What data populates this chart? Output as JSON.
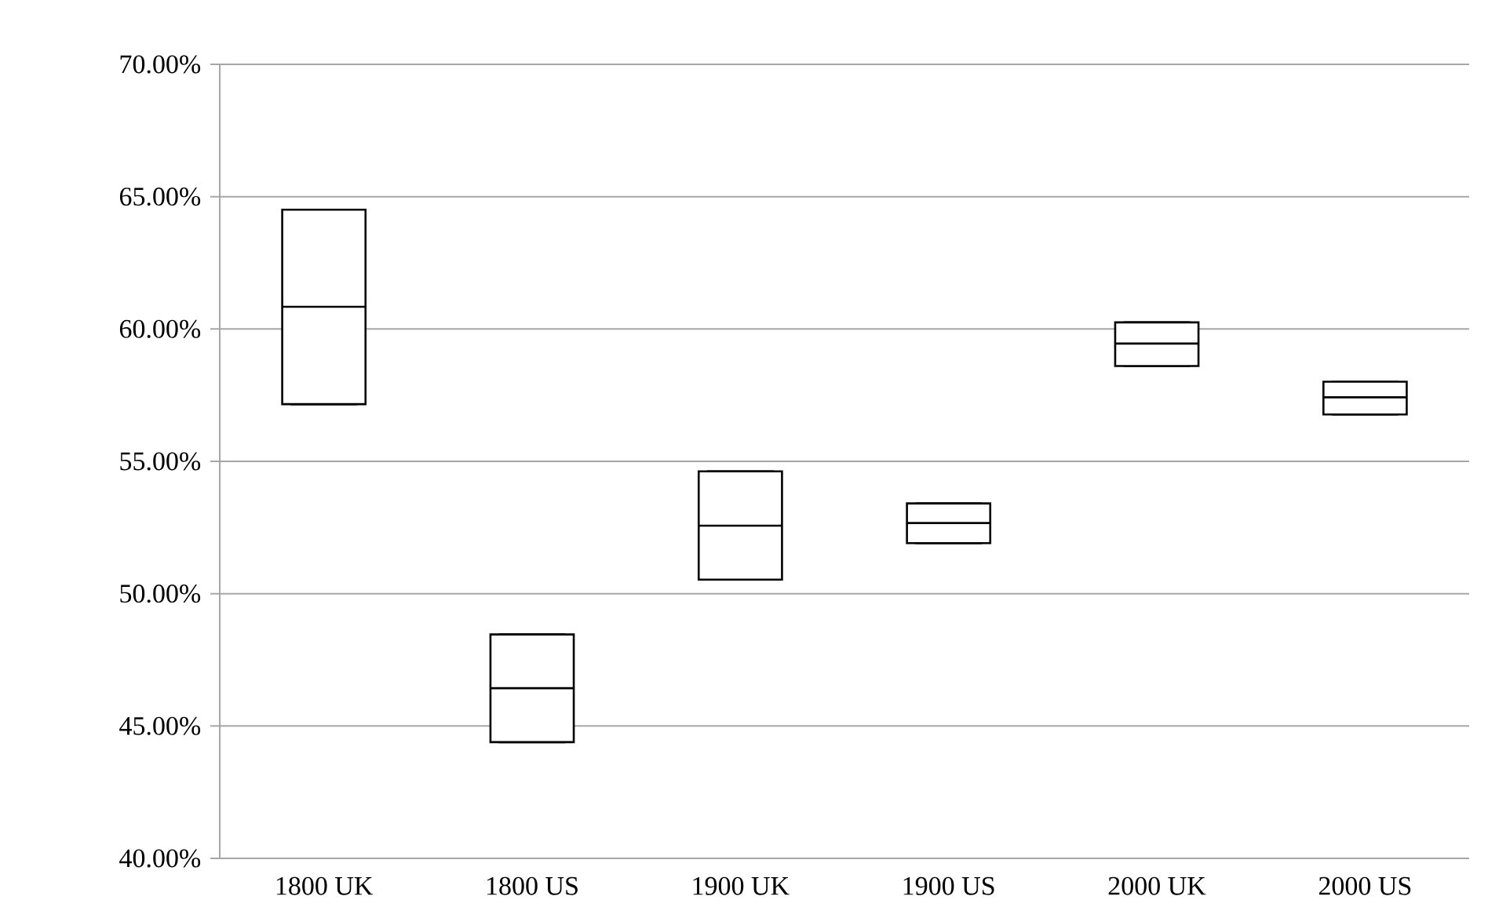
{
  "chart_data": {
    "type": "box",
    "categories": [
      "1800 UK",
      "1800 US",
      "1900 UK",
      "1900 US",
      "2000 UK",
      "2000 US"
    ],
    "boxes": [
      {
        "low": 57.16,
        "q1": 57.16,
        "median": 60.84,
        "q3": 64.51,
        "high": 64.51
      },
      {
        "low": 44.39,
        "q1": 44.39,
        "median": 46.43,
        "q3": 48.46,
        "high": 48.46
      },
      {
        "low": 50.53,
        "q1": 50.53,
        "median": 52.57,
        "q3": 54.62,
        "high": 54.62
      },
      {
        "low": 51.91,
        "q1": 51.91,
        "median": 52.67,
        "q3": 53.41,
        "high": 53.41
      },
      {
        "low": 58.6,
        "q1": 58.6,
        "median": 59.45,
        "q3": 60.25,
        "high": 60.25
      },
      {
        "low": 56.77,
        "q1": 56.77,
        "median": 57.42,
        "q3": 58.01,
        "high": 58.01
      }
    ],
    "color": "#000000",
    "ylim": [
      40,
      70
    ],
    "yticks": [
      {
        "value": 40,
        "label": "40.00%"
      },
      {
        "value": 45,
        "label": "45.00%"
      },
      {
        "value": 50,
        "label": "50.00%"
      },
      {
        "value": 55,
        "label": "55.00%"
      },
      {
        "value": 60,
        "label": "60.00%"
      },
      {
        "value": 65,
        "label": "65.00%"
      },
      {
        "value": 70,
        "label": "70.00%"
      }
    ],
    "grid": "y"
  }
}
